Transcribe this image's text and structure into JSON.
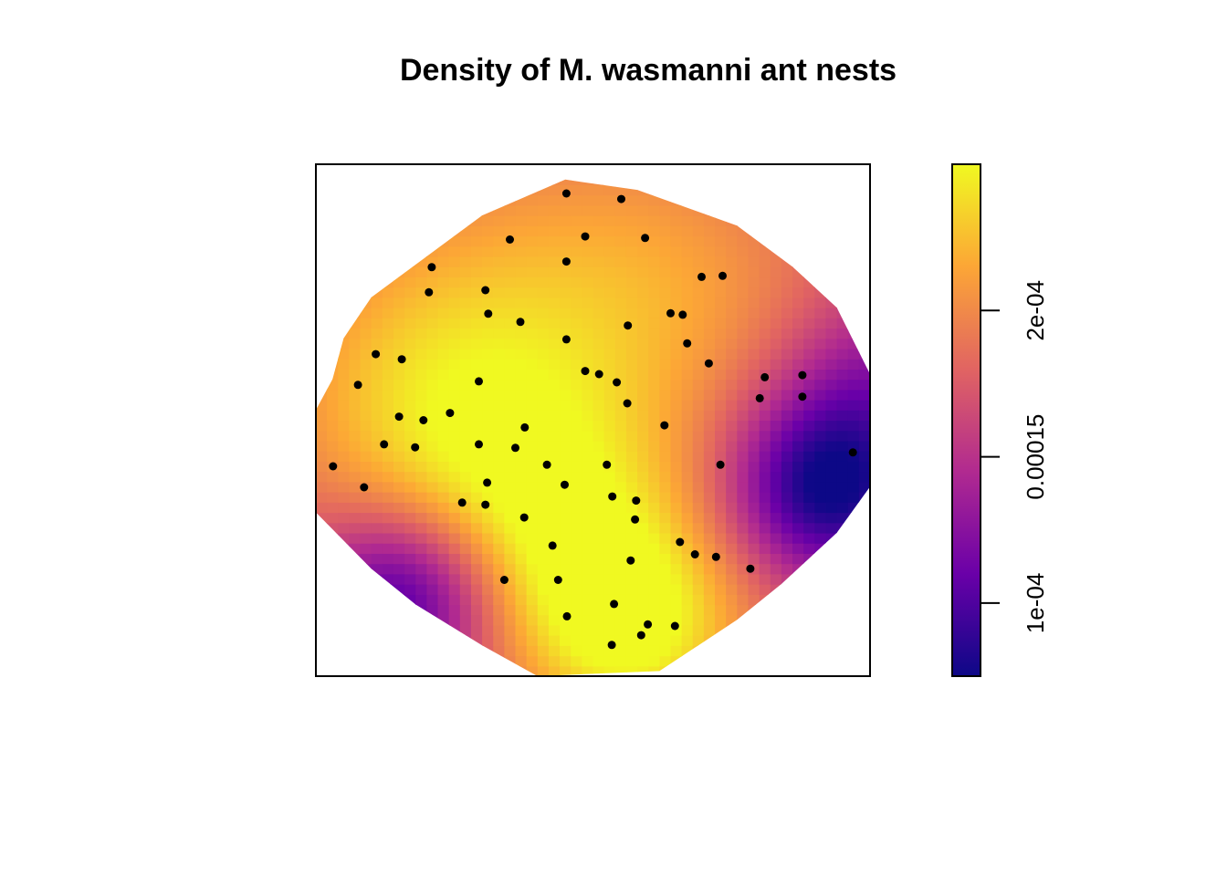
{
  "chart_data": {
    "type": "heatmap",
    "title": "Density of M. wasmanni ant nests",
    "xlabel": "",
    "ylabel": "",
    "colorbar": {
      "range": [
        7.5e-05,
        0.00025
      ],
      "ticks": [
        0.0001,
        0.00015,
        0.0002
      ],
      "tick_labels": [
        "1e-04",
        "0.00015",
        "2e-04"
      ],
      "colormap": "plasma",
      "colors": [
        "#0d0887",
        "#6a00a8",
        "#b12a90",
        "#e16462",
        "#fca636",
        "#f0f921"
      ]
    },
    "window": {
      "xlim": [
        0,
        100
      ],
      "ylim": [
        0,
        100
      ],
      "boundary": [
        [
          0,
          52
        ],
        [
          3,
          58
        ],
        [
          5,
          66
        ],
        [
          10,
          74
        ],
        [
          20,
          82
        ],
        [
          30,
          90
        ],
        [
          45,
          97
        ],
        [
          58,
          95
        ],
        [
          76,
          88
        ],
        [
          86,
          80
        ],
        [
          94,
          72
        ],
        [
          100,
          59
        ],
        [
          100,
          37
        ],
        [
          94,
          28
        ],
        [
          84,
          18
        ],
        [
          76,
          11
        ],
        [
          62,
          1
        ],
        [
          40,
          0
        ],
        [
          30,
          6
        ],
        [
          18,
          14
        ],
        [
          10,
          21
        ],
        [
          0,
          32
        ]
      ]
    },
    "density_hotspots": [
      {
        "x": 57,
        "y": 9,
        "w": 1.0,
        "sd": 15
      },
      {
        "x": 28,
        "y": 45,
        "w": 0.55,
        "sd": 22
      },
      {
        "x": 45,
        "y": 30,
        "w": 0.6,
        "sd": 18
      },
      {
        "x": 45,
        "y": 80,
        "w": 0.4,
        "sd": 25
      },
      {
        "x": 70,
        "y": 75,
        "w": 0.3,
        "sd": 20
      },
      {
        "x": 15,
        "y": 60,
        "w": 0.35,
        "sd": 22
      }
    ],
    "density_lows": [
      {
        "x": 92,
        "y": 37,
        "w": 1.0,
        "sd": 12
      },
      {
        "x": 16,
        "y": 16,
        "w": 0.9,
        "sd": 12
      },
      {
        "x": 100,
        "y": 58,
        "w": 0.4,
        "sd": 12
      }
    ],
    "points": [
      [
        45.2,
        94.3
      ],
      [
        55.1,
        93.2
      ],
      [
        35.0,
        85.3
      ],
      [
        48.6,
        85.9
      ],
      [
        59.4,
        85.6
      ],
      [
        20.9,
        79.9
      ],
      [
        45.2,
        81.0
      ],
      [
        69.6,
        78.0
      ],
      [
        73.4,
        78.2
      ],
      [
        20.4,
        75.0
      ],
      [
        30.6,
        75.4
      ],
      [
        31.1,
        70.8
      ],
      [
        36.9,
        69.2
      ],
      [
        64.0,
        70.9
      ],
      [
        66.2,
        70.6
      ],
      [
        56.3,
        68.5
      ],
      [
        10.8,
        62.9
      ],
      [
        15.5,
        61.9
      ],
      [
        45.2,
        65.8
      ],
      [
        67.0,
        65.0
      ],
      [
        70.9,
        61.1
      ],
      [
        48.6,
        59.6
      ],
      [
        51.1,
        59.0
      ],
      [
        54.3,
        57.4
      ],
      [
        29.4,
        57.6
      ],
      [
        7.6,
        56.9
      ],
      [
        81.0,
        58.4
      ],
      [
        87.8,
        58.8
      ],
      [
        56.2,
        53.3
      ],
      [
        80.1,
        54.3
      ],
      [
        87.8,
        54.6
      ],
      [
        19.4,
        50.0
      ],
      [
        15.0,
        50.7
      ],
      [
        24.2,
        51.4
      ],
      [
        37.7,
        48.6
      ],
      [
        62.9,
        49.0
      ],
      [
        36.0,
        44.6
      ],
      [
        12.3,
        45.3
      ],
      [
        17.9,
        44.7
      ],
      [
        29.4,
        45.3
      ],
      [
        41.7,
        41.3
      ],
      [
        96.9,
        43.7
      ],
      [
        52.5,
        41.3
      ],
      [
        3.1,
        41.0
      ],
      [
        73.0,
        41.3
      ],
      [
        8.7,
        36.9
      ],
      [
        30.9,
        37.8
      ],
      [
        44.9,
        37.4
      ],
      [
        53.5,
        35.1
      ],
      [
        57.8,
        34.3
      ],
      [
        30.6,
        33.5
      ],
      [
        26.4,
        33.9
      ],
      [
        37.6,
        31.0
      ],
      [
        57.6,
        30.6
      ],
      [
        42.7,
        25.5
      ],
      [
        65.7,
        26.2
      ],
      [
        68.4,
        23.8
      ],
      [
        72.2,
        23.3
      ],
      [
        56.8,
        22.6
      ],
      [
        78.4,
        21.0
      ],
      [
        34.0,
        18.8
      ],
      [
        43.7,
        18.8
      ],
      [
        53.8,
        14.1
      ],
      [
        45.3,
        11.7
      ],
      [
        59.9,
        10.1
      ],
      [
        64.8,
        9.8
      ],
      [
        58.7,
        8.0
      ],
      [
        53.4,
        6.1
      ]
    ]
  }
}
